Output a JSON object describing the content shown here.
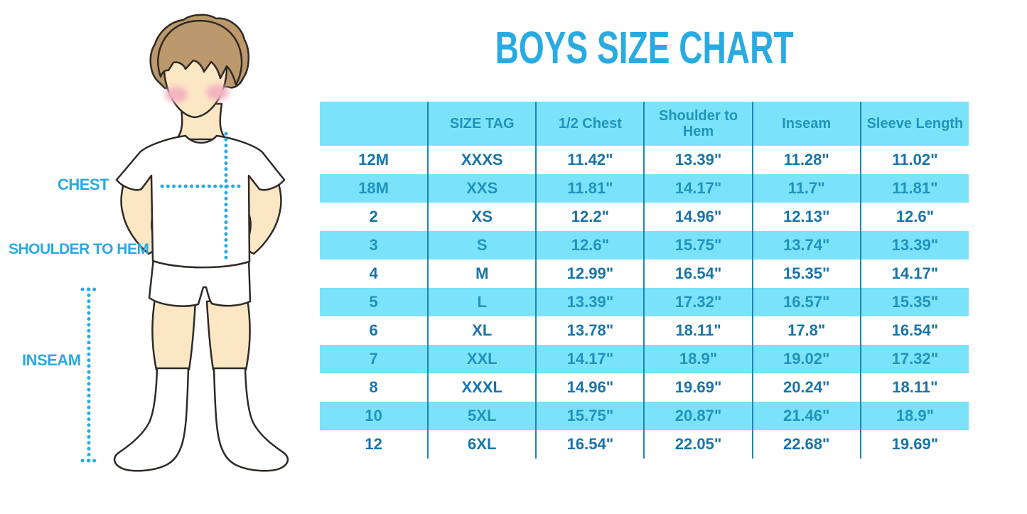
{
  "title": "BOYS SIZE CHART",
  "figure": {
    "labels": {
      "chest": "CHEST",
      "shoulder_to_hem": "SHOULDER TO HEM",
      "inseam": "INSEAM"
    }
  },
  "colors": {
    "title_blue": "#29ABE2",
    "label_blue": "#29A9E1",
    "dotted_line_blue": "#2BAAE3",
    "table_row_blue_bg": "#7BE3F9",
    "table_header_text": "#2193BB",
    "table_white_row_text": "#1874A9",
    "table_divider": "#1E86B2",
    "skin": "#FBE7C4",
    "hair": "#BC996D",
    "blush": "#F4B3C2",
    "outline": "#2F2A26"
  },
  "chart_data": {
    "type": "table",
    "title": "BOYS SIZE CHART",
    "columns": [
      "",
      "SIZE TAG",
      "1/2 Chest",
      "Shoulder to Hem",
      "Inseam",
      "Sleeve Length"
    ],
    "rows": [
      [
        "12M",
        "XXXS",
        "11.42\"",
        "13.39\"",
        "11.28\"",
        "11.02\""
      ],
      [
        "18M",
        "XXS",
        "11.81\"",
        "14.17\"",
        "11.7\"",
        "11.81\""
      ],
      [
        "2",
        "XS",
        "12.2\"",
        "14.96\"",
        "12.13\"",
        "12.6\""
      ],
      [
        "3",
        "S",
        "12.6\"",
        "15.75\"",
        "13.74\"",
        "13.39\""
      ],
      [
        "4",
        "M",
        "12.99\"",
        "16.54\"",
        "15.35\"",
        "14.17\""
      ],
      [
        "5",
        "L",
        "13.39\"",
        "17.32\"",
        "16.57\"",
        "15.35\""
      ],
      [
        "6",
        "XL",
        "13.78\"",
        "18.11\"",
        "17.8\"",
        "16.54\""
      ],
      [
        "7",
        "XXL",
        "14.17\"",
        "18.9\"",
        "19.02\"",
        "17.32\""
      ],
      [
        "8",
        "XXXL",
        "14.96\"",
        "19.69\"",
        "20.24\"",
        "18.11\""
      ],
      [
        "10",
        "5XL",
        "15.75\"",
        "20.87\"",
        "21.46\"",
        "18.9\""
      ],
      [
        "12",
        "6XL",
        "16.54\"",
        "22.05\"",
        "22.68\"",
        "19.69\""
      ]
    ],
    "units": "inches",
    "layout": "header row and every second data row highlighted light blue; others white; grid has vertical column dividers only"
  }
}
